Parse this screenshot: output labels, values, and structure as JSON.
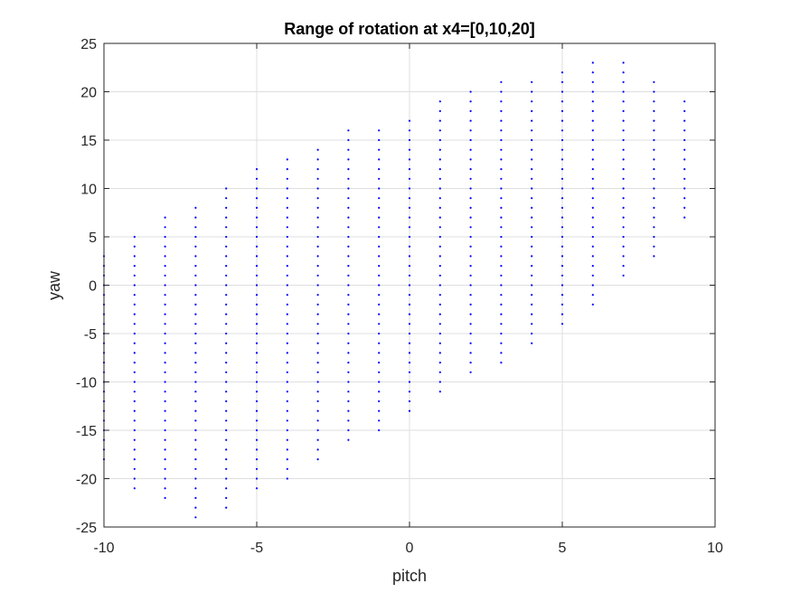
{
  "chart_data": {
    "type": "scatter",
    "title": "Range of rotation at x4=[0,10,20]",
    "xlabel": "pitch",
    "ylabel": "yaw",
    "xlim": [
      -10,
      10
    ],
    "ylim": [
      -25,
      25
    ],
    "xticks": [
      "-10",
      "-5",
      "0",
      "5",
      "10"
    ],
    "yticks": [
      "25",
      "20",
      "15",
      "10",
      "5",
      "0",
      "-5",
      "-10",
      "-15",
      "-20",
      "-25"
    ],
    "grid": true,
    "marker_color": "#0000ff",
    "point_columns": [
      {
        "x": -10,
        "y_min": -18,
        "y_max": 3
      },
      {
        "x": -9,
        "y_min": -21,
        "y_max": 5
      },
      {
        "x": -8,
        "y_min": -22,
        "y_max": 7
      },
      {
        "x": -7,
        "y_min": -24,
        "y_max": 8
      },
      {
        "x": -6,
        "y_min": -23,
        "y_max": 10
      },
      {
        "x": -5,
        "y_min": -21,
        "y_max": 12
      },
      {
        "x": -4,
        "y_min": -20,
        "y_max": 13
      },
      {
        "x": -3,
        "y_min": -18,
        "y_max": 14
      },
      {
        "x": -2,
        "y_min": -16,
        "y_max": 16
      },
      {
        "x": -1,
        "y_min": -15,
        "y_max": 16
      },
      {
        "x": 0,
        "y_min": -13,
        "y_max": 17
      },
      {
        "x": 1,
        "y_min": -11,
        "y_max": 19
      },
      {
        "x": 2,
        "y_min": -9,
        "y_max": 20
      },
      {
        "x": 3,
        "y_min": -8,
        "y_max": 21
      },
      {
        "x": 4,
        "y_min": -6,
        "y_max": 21
      },
      {
        "x": 5,
        "y_min": -4,
        "y_max": 22
      },
      {
        "x": 6,
        "y_min": -2,
        "y_max": 23
      },
      {
        "x": 7,
        "y_min": 1,
        "y_max": 23
      },
      {
        "x": 8,
        "y_min": 3,
        "y_max": 21
      },
      {
        "x": 9,
        "y_min": 7,
        "y_max": 19
      }
    ]
  }
}
